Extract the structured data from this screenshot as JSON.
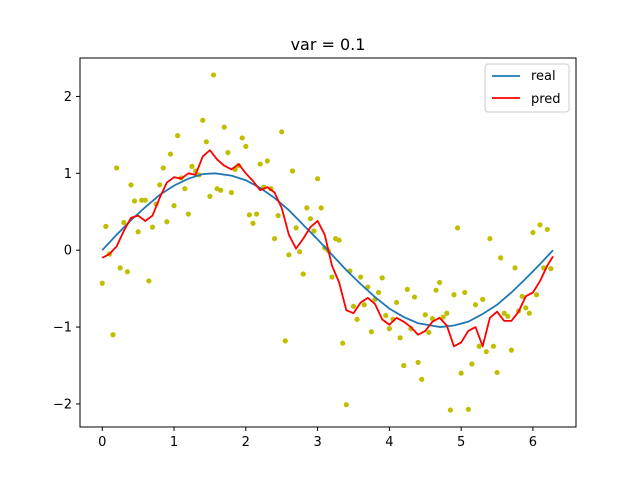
{
  "chart_data": {
    "type": "line",
    "title": "var = 0.1",
    "xlabel": "",
    "ylabel": "",
    "xlim": [
      -0.31,
      6.6
    ],
    "ylim": [
      -2.3,
      2.5
    ],
    "xticks": [
      0,
      1,
      2,
      3,
      4,
      5,
      6
    ],
    "yticks": [
      -2,
      -1,
      0,
      1,
      2
    ],
    "grid": false,
    "legend": "top-right",
    "colors": {
      "real": "#1f77b4",
      "pred": "#ff0000",
      "points": "#bfbf00"
    },
    "series": [
      {
        "name": "real",
        "kind": "function",
        "x": [
          0.0,
          0.2,
          0.4,
          0.6,
          0.8,
          1.0,
          1.2,
          1.4,
          1.57,
          1.8,
          2.0,
          2.2,
          2.4,
          2.6,
          2.8,
          3.0,
          3.2,
          3.4,
          3.6,
          3.8,
          4.0,
          4.2,
          4.4,
          4.71,
          4.9,
          5.1,
          5.3,
          5.5,
          5.7,
          5.9,
          6.1,
          6.28
        ],
        "y": [
          0.0,
          0.2,
          0.39,
          0.56,
          0.72,
          0.84,
          0.93,
          0.99,
          1.0,
          0.97,
          0.91,
          0.81,
          0.68,
          0.52,
          0.33,
          0.14,
          -0.06,
          -0.26,
          -0.44,
          -0.61,
          -0.76,
          -0.87,
          -0.95,
          -1.0,
          -0.98,
          -0.93,
          -0.83,
          -0.71,
          -0.55,
          -0.37,
          -0.18,
          0.0
        ]
      },
      {
        "name": "pred",
        "kind": "curve",
        "x": [
          0.0,
          0.1,
          0.2,
          0.3,
          0.4,
          0.5,
          0.6,
          0.7,
          0.8,
          0.9,
          1.0,
          1.1,
          1.2,
          1.3,
          1.4,
          1.5,
          1.6,
          1.7,
          1.8,
          1.9,
          2.0,
          2.1,
          2.2,
          2.3,
          2.4,
          2.5,
          2.6,
          2.7,
          2.8,
          2.9,
          3.0,
          3.1,
          3.2,
          3.3,
          3.4,
          3.5,
          3.6,
          3.7,
          3.8,
          3.9,
          4.0,
          4.1,
          4.2,
          4.3,
          4.4,
          4.5,
          4.6,
          4.7,
          4.8,
          4.9,
          5.0,
          5.1,
          5.2,
          5.3,
          5.4,
          5.5,
          5.6,
          5.7,
          5.8,
          5.9,
          6.0,
          6.1,
          6.2,
          6.28
        ],
        "y": [
          -0.1,
          -0.05,
          0.05,
          0.25,
          0.42,
          0.45,
          0.38,
          0.45,
          0.68,
          0.88,
          0.95,
          0.93,
          1.0,
          0.98,
          1.22,
          1.3,
          1.18,
          1.1,
          1.05,
          1.12,
          1.0,
          0.9,
          0.78,
          0.82,
          0.75,
          0.55,
          0.2,
          0.02,
          0.15,
          0.3,
          0.38,
          0.2,
          -0.2,
          -0.42,
          -0.78,
          -0.82,
          -0.68,
          -0.62,
          -0.7,
          -0.9,
          -0.97,
          -0.88,
          -0.93,
          -1.0,
          -1.1,
          -1.05,
          -0.93,
          -0.88,
          -0.98,
          -1.25,
          -1.2,
          -1.05,
          -1.0,
          -1.25,
          -0.88,
          -0.8,
          -0.92,
          -0.92,
          -0.8,
          -0.6,
          -0.55,
          -0.4,
          -0.2,
          -0.08
        ]
      },
      {
        "name": "",
        "kind": "scatter",
        "x": [
          0.0,
          0.05,
          0.1,
          0.15,
          0.2,
          0.25,
          0.3,
          0.35,
          0.4,
          0.45,
          0.5,
          0.55,
          0.6,
          0.65,
          0.7,
          0.75,
          0.8,
          0.85,
          0.9,
          0.95,
          1.0,
          1.05,
          1.1,
          1.15,
          1.2,
          1.25,
          1.3,
          1.35,
          1.4,
          1.45,
          1.5,
          1.55,
          1.6,
          1.65,
          1.7,
          1.75,
          1.8,
          1.85,
          1.9,
          1.95,
          2.0,
          2.05,
          2.1,
          2.15,
          2.2,
          2.25,
          2.3,
          2.35,
          2.4,
          2.45,
          2.5,
          2.55,
          2.6,
          2.65,
          2.7,
          2.75,
          2.8,
          2.85,
          2.9,
          2.95,
          3.0,
          3.05,
          3.1,
          3.15,
          3.2,
          3.25,
          3.3,
          3.35,
          3.4,
          3.45,
          3.5,
          3.55,
          3.6,
          3.65,
          3.7,
          3.75,
          3.8,
          3.85,
          3.9,
          3.95,
          4.0,
          4.05,
          4.1,
          4.15,
          4.2,
          4.25,
          4.3,
          4.35,
          4.4,
          4.45,
          4.5,
          4.55,
          4.6,
          4.65,
          4.7,
          4.75,
          4.8,
          4.85,
          4.9,
          4.95,
          5.0,
          5.05,
          5.1,
          5.15,
          5.2,
          5.25,
          5.3,
          5.35,
          5.4,
          5.45,
          5.5,
          5.55,
          5.6,
          5.65,
          5.7,
          5.75,
          5.8,
          5.85,
          5.9,
          5.95,
          6.0,
          6.05,
          6.1,
          6.15,
          6.2,
          6.25
        ],
        "y": [
          -0.43,
          0.31,
          -0.05,
          -1.1,
          1.07,
          -0.23,
          0.36,
          -0.28,
          0.85,
          0.64,
          0.24,
          0.65,
          0.65,
          -0.4,
          0.3,
          0.6,
          0.85,
          1.07,
          0.37,
          1.25,
          0.58,
          1.49,
          0.94,
          0.8,
          0.47,
          1.09,
          1.03,
          0.98,
          1.69,
          1.41,
          0.7,
          2.28,
          0.8,
          0.78,
          1.6,
          1.27,
          0.75,
          1.05,
          1.1,
          1.46,
          1.35,
          0.46,
          0.35,
          0.47,
          1.12,
          0.82,
          1.16,
          0.8,
          0.15,
          0.45,
          1.54,
          -1.18,
          -0.06,
          1.03,
          0.29,
          -0.02,
          -0.31,
          0.55,
          0.41,
          0.25,
          0.93,
          0.55,
          0.03,
          -0.01,
          -0.35,
          0.15,
          0.13,
          -1.21,
          -2.01,
          -0.27,
          -0.73,
          -0.9,
          -0.35,
          -0.71,
          -0.48,
          -1.06,
          -0.64,
          -0.55,
          -0.36,
          -0.85,
          -1.02,
          -0.9,
          -0.68,
          -1.14,
          -1.5,
          -0.51,
          -1.02,
          -0.61,
          -1.46,
          -1.68,
          -0.84,
          -1.07,
          -0.89,
          -0.52,
          -0.42,
          -0.87,
          -0.82,
          -2.08,
          -0.58,
          0.29,
          -1.6,
          -0.55,
          -2.07,
          -1.48,
          -0.71,
          -1.25,
          -0.64,
          -1.32,
          0.15,
          -1.25,
          -1.59,
          -0.1,
          -0.82,
          -0.86,
          -1.3,
          -0.23,
          -0.79,
          -0.6,
          -0.75,
          -0.82,
          0.23,
          -0.58,
          0.33,
          -0.23,
          0.27,
          -0.24
        ]
      }
    ]
  }
}
